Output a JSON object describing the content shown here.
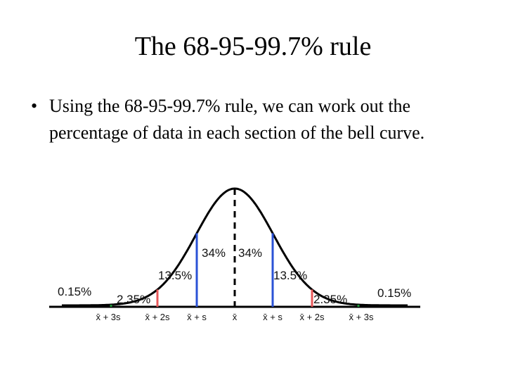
{
  "slide": {
    "title": "The 68-95-99.7% rule",
    "bullets": [
      "Using the 68-95-99.7% rule, we can work out the percentage of data in each section of the bell curve."
    ]
  },
  "bell_curve": {
    "percentages": {
      "outer_left": "0.15%",
      "tail_left": "2.35%",
      "mid_left": "13.5%",
      "center_left": "34%",
      "center_right": "34%",
      "mid_right": "13.5%",
      "tail_right": "2.35%",
      "outer_right": "0.15%"
    },
    "axis_labels": {
      "minus3": "x̄ + 3s",
      "minus2": "x̄ + 2s",
      "minus1": "x̄ + s",
      "mean": "x̄",
      "plus1": "x̄ + s",
      "plus2": "x̄ + 2s",
      "plus3": "x̄ + 3s"
    },
    "colors": {
      "curve": "#000000",
      "one_sd": "#2a52d6",
      "two_sd": "#e8585a",
      "three_sd": "#1f9a3a",
      "mean": "#000000"
    }
  }
}
